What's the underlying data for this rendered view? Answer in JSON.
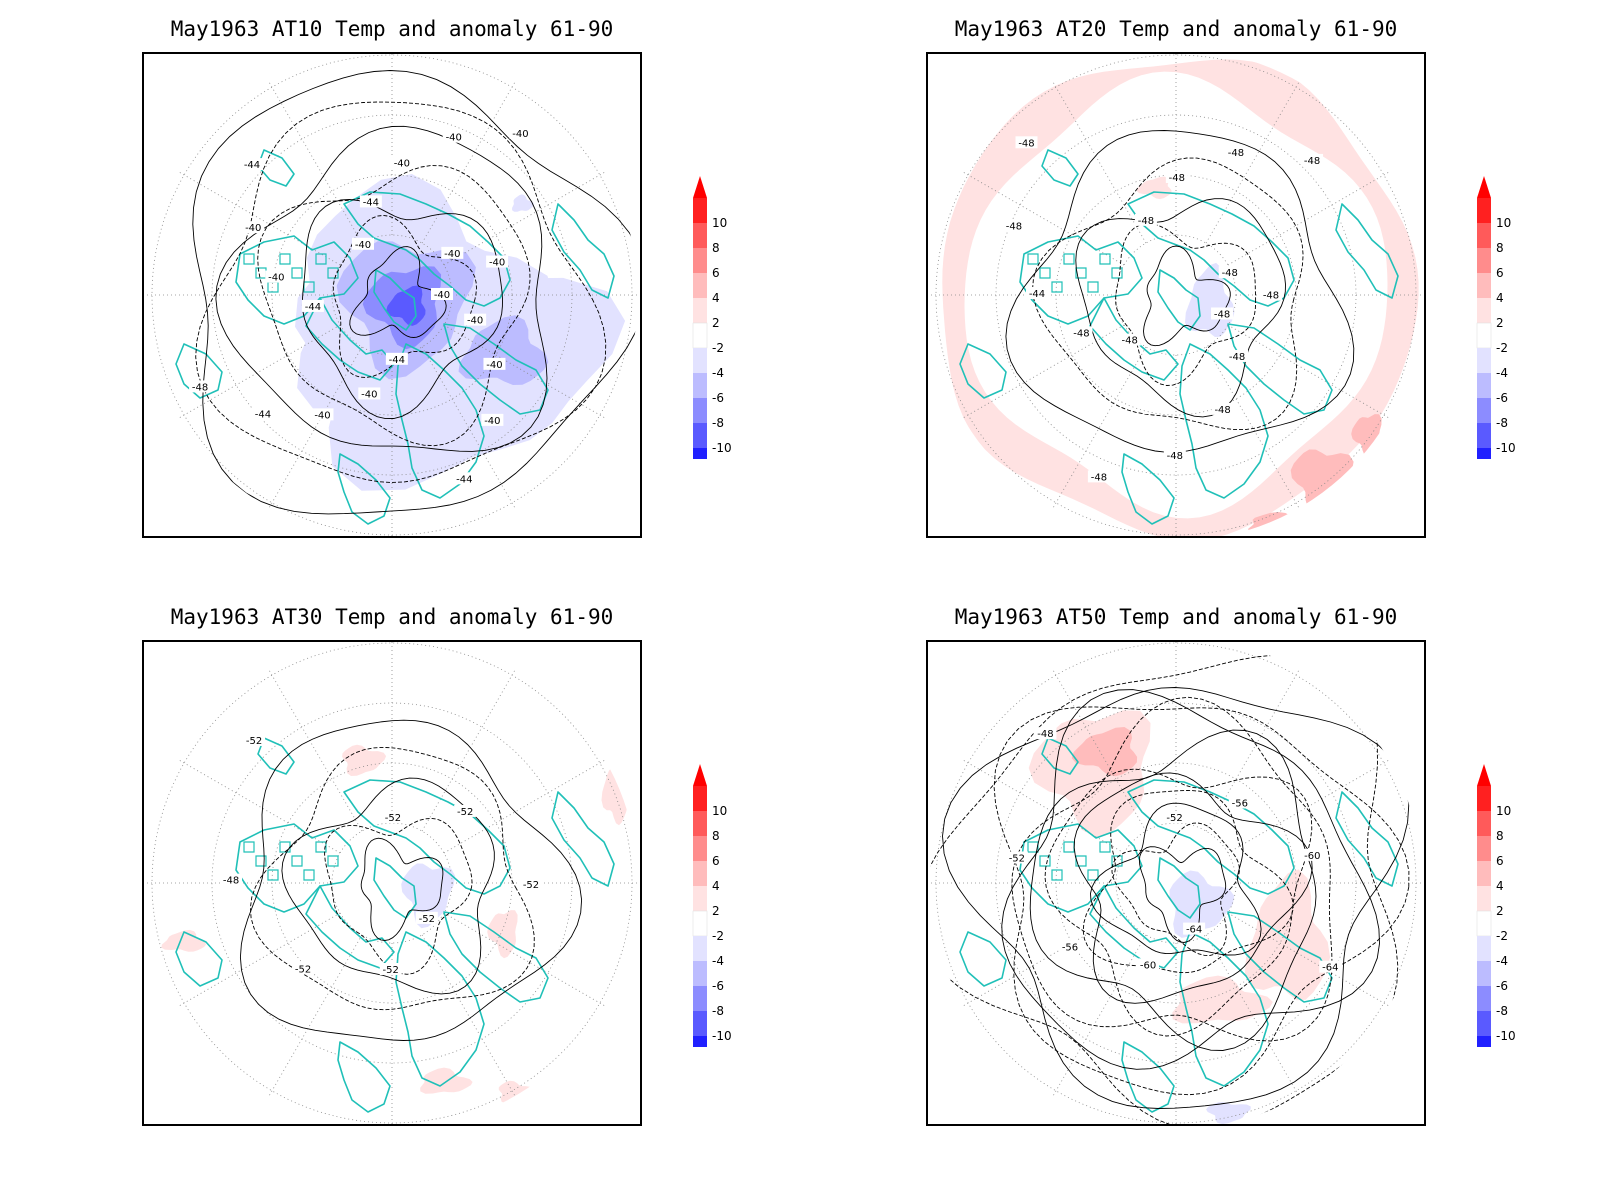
{
  "panels": [
    {
      "title": "May1963 AT10 Temp and anomaly 61-90",
      "anomaly_fill": "cold",
      "contour_labels": [
        "-40",
        "-40",
        "-40",
        "-40",
        "-44",
        "-44",
        "-40",
        "-40",
        "-44",
        "-48",
        "-44",
        "-40",
        "-40",
        "-44",
        "-40",
        "-44",
        "-40",
        "-40",
        "-40",
        "-40",
        "-40"
      ]
    },
    {
      "title": "May1963 AT20 Temp and anomaly 61-90",
      "anomaly_fill": "warm-ring",
      "contour_labels": [
        "-48",
        "-48",
        "-48",
        "-48",
        "-48",
        "-48",
        "-48",
        "-44",
        "-48",
        "-48",
        "-48",
        "-48",
        "-48",
        "-48",
        "-48",
        "-48"
      ]
    },
    {
      "title": "May1963 AT30 Temp and anomaly 61-90",
      "anomaly_fill": "weak",
      "contour_labels": [
        "-52",
        "-52",
        "-52",
        "-48",
        "-52",
        "-52",
        "-52",
        "-52"
      ]
    },
    {
      "title": "May1963 AT50 Temp and anomaly 61-90",
      "anomaly_fill": "warm-pacific",
      "contour_labels": [
        "-64",
        "-60",
        "-56",
        "-52",
        "-48",
        "-52",
        "-56",
        "-60",
        "-64"
      ]
    }
  ],
  "colorbar": {
    "ticks": [
      "10",
      "8",
      "6",
      "4",
      "2",
      "-2",
      "-4",
      "-6",
      "-8",
      "-10"
    ],
    "colors": [
      "#ff2020",
      "#ff5a5a",
      "#ff8c8c",
      "#ffbcbc",
      "#ffe2e2",
      "#ffffff",
      "#e2e2ff",
      "#bcbcff",
      "#8c8cff",
      "#5a5aff",
      "#2020ff"
    ],
    "over_color": "#ff0000",
    "under_color": "#0000ff"
  },
  "style": {
    "coastline_color": "#20c0b8",
    "contour_color": "#000000",
    "grid_color": "#888888"
  }
}
